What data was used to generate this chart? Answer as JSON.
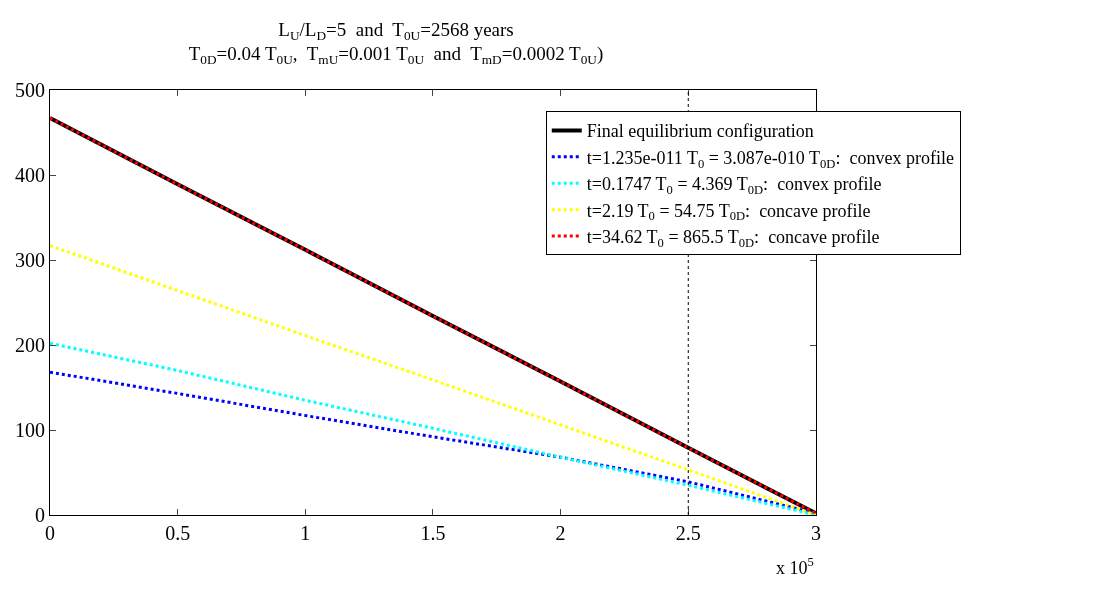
{
  "chart_data": {
    "type": "line",
    "title": "L$_{U}$/L$_{D}$=5  and  T$_{0U}$=2568 years\nT$_{0D}$=0.04 T$_{0U}$,  T$_{mU}$=0.001 T$_{0U}$  and  T$_{mD}$=0.0002 T$_{0U}$)",
    "x": [
      0,
      0.5,
      1,
      1.5,
      2,
      2.5,
      3
    ],
    "series": [
      {
        "name": "Final equilibrium configuration",
        "color": "#000000",
        "line_style": "solid",
        "values": [
          467,
          389,
          312,
          234,
          157,
          79,
          2
        ]
      },
      {
        "name": "t=1.235e-011 T$_{0}$ = 3.087e-010 T$_{0D}$:  convex profile",
        "color": "#0000ff",
        "line_style": "dotted",
        "values": [
          168,
          143,
          117,
          92,
          68,
          39,
          2
        ]
      },
      {
        "name": "t=0.1747 T$_{0}$ = 4.369 T$_{0D}$:  convex profile",
        "color": "#00ffff",
        "line_style": "dotted",
        "values": [
          202,
          170,
          135,
          102,
          68,
          35,
          0
        ]
      },
      {
        "name": "t=2.19 T$_{0}$ = 54.75 T$_{0D}$:  concave profile",
        "color": "#ffff00",
        "line_style": "dotted",
        "values": [
          317,
          264,
          211,
          159,
          106,
          53,
          0
        ]
      },
      {
        "name": "t=34.62 T$_{0}$ = 865.5 T$_{0D}$:  concave profile",
        "color": "#ff0000",
        "line_style": "dotted",
        "values": [
          467,
          389,
          312,
          234,
          157,
          79,
          2
        ]
      }
    ],
    "xlim": [
      0,
      3
    ],
    "xticks": [
      0,
      0.5,
      1,
      1.5,
      2,
      2.5,
      3
    ],
    "ylim": [
      0,
      500
    ],
    "yticks": [
      0,
      100,
      200,
      300,
      400,
      500
    ],
    "ref_lines": [
      {
        "axis": "x",
        "value": 2.5,
        "color": "#000000",
        "line_style": "dotted"
      }
    ],
    "annotations": [
      "x 10$^{5}$"
    ],
    "legend": "top right",
    "marker": "none"
  }
}
